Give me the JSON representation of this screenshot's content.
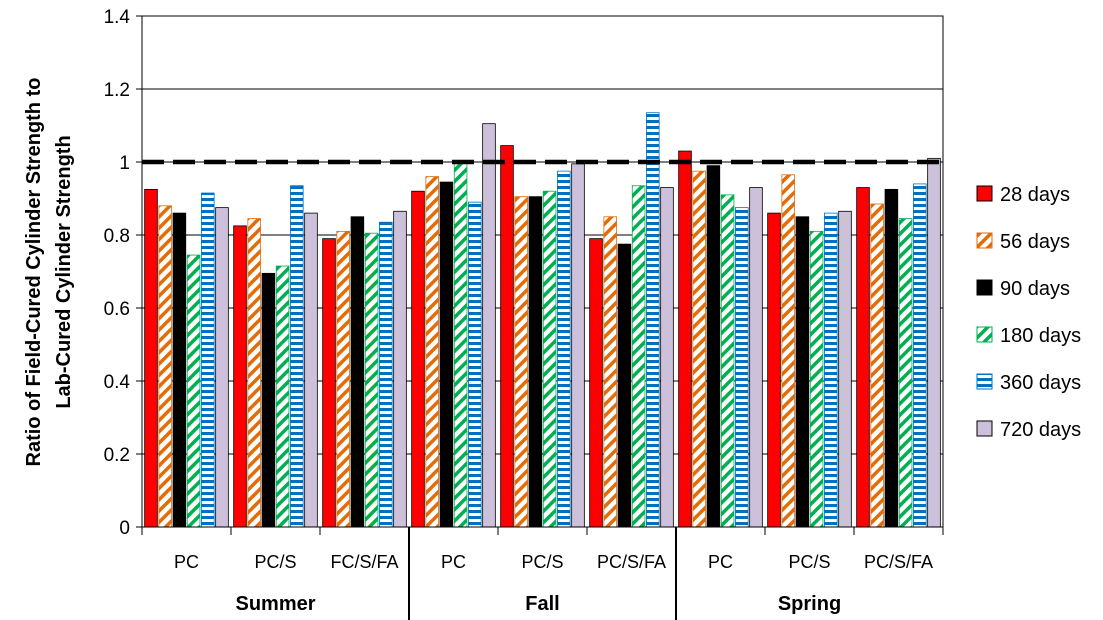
{
  "chart_data": {
    "type": "bar",
    "title": "",
    "xlabel": "",
    "ylabel_lines": [
      "Ratio of Field-Cured Cylinder Strength to",
      "Lab-Cured Cylinder Strength"
    ],
    "ylim": [
      0,
      1.4
    ],
    "yticks": [
      0,
      0.2,
      0.4,
      0.6,
      0.8,
      1,
      1.2,
      1.4
    ],
    "ytick_labels": [
      "0",
      "0.2",
      "0.4",
      "0.6",
      "0.8",
      "1",
      "1.2",
      "1.4"
    ],
    "grid": "horizontal major gridlines",
    "reference_line": {
      "y": 1.0,
      "style": "dashed",
      "color": "#000000"
    },
    "legend_position": "right",
    "categories": [
      "PC",
      "PC/S",
      "FC/S/FA",
      "PC",
      "PC/S",
      "PC/S/FA",
      "PC",
      "PC/S",
      "PC/S/FA"
    ],
    "groups": [
      {
        "label": "Summer",
        "categories": 3
      },
      {
        "label": "Fall",
        "categories": 3
      },
      {
        "label": "Spring",
        "categories": 3
      }
    ],
    "series": [
      {
        "name": "28 days",
        "color": "#ff0000",
        "pattern": "solid",
        "values": [
          0.925,
          0.825,
          0.79,
          0.92,
          1.045,
          0.79,
          1.03,
          0.86,
          0.93
        ]
      },
      {
        "name": "56 days",
        "color": "#e36c09",
        "pattern": "diagonal-stripes",
        "values": [
          0.88,
          0.845,
          0.81,
          0.96,
          0.905,
          0.85,
          0.975,
          0.965,
          0.885
        ]
      },
      {
        "name": "90 days",
        "color": "#000000",
        "pattern": "solid",
        "values": [
          0.86,
          0.695,
          0.85,
          0.945,
          0.905,
          0.775,
          0.99,
          0.85,
          0.925
        ]
      },
      {
        "name": "180 days",
        "color": "#00b050",
        "pattern": "diagonal-stripes",
        "values": [
          0.745,
          0.715,
          0.805,
          1.0,
          0.92,
          0.935,
          0.91,
          0.81,
          0.845
        ]
      },
      {
        "name": "360 days",
        "color": "#0070c0",
        "pattern": "horizontal-stripes",
        "values": [
          0.915,
          0.935,
          0.835,
          0.89,
          0.975,
          1.135,
          0.875,
          0.86,
          0.94
        ]
      },
      {
        "name": "720 days",
        "color": "#ccc0da",
        "pattern": "solid",
        "values": [
          0.875,
          0.86,
          0.865,
          1.105,
          0.995,
          0.93,
          0.93,
          0.865,
          1.01
        ]
      }
    ]
  }
}
